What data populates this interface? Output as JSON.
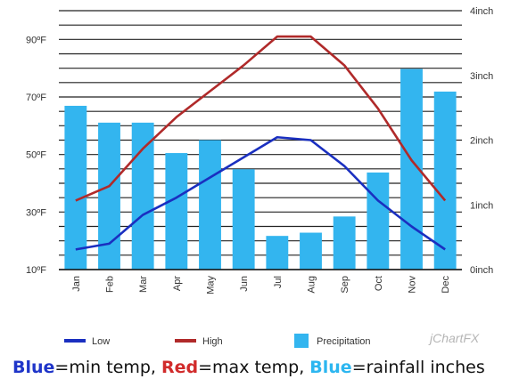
{
  "chart_data": {
    "type": "bar",
    "categories": [
      "Jan",
      "Feb",
      "Mar",
      "Apr",
      "May",
      "Jun",
      "Jul",
      "Aug",
      "Sep",
      "Oct",
      "Nov",
      "Dec"
    ],
    "series": [
      {
        "name": "Low",
        "type": "line",
        "axis": "left",
        "color": "#1a2fc0",
        "values": [
          17,
          19,
          29,
          35,
          42,
          49,
          56,
          55,
          46,
          34,
          25,
          17
        ]
      },
      {
        "name": "High",
        "type": "line",
        "axis": "left",
        "color": "#b02a2a",
        "values": [
          34,
          39,
          52,
          63,
          72,
          81,
          91,
          91,
          81,
          66,
          48,
          34
        ]
      },
      {
        "name": "Precipitation",
        "type": "bar",
        "axis": "right",
        "color": "#33b5ef",
        "values": [
          2.53,
          2.27,
          2.27,
          1.8,
          2.0,
          1.55,
          0.52,
          0.57,
          0.82,
          1.5,
          3.1,
          2.75
        ]
      }
    ],
    "left_axis": {
      "ylim": [
        10,
        100
      ],
      "ticks": [
        "10ºF",
        "30ºF",
        "50ºF",
        "70ºF",
        "90ºF"
      ]
    },
    "right_axis": {
      "ylim": [
        0,
        4
      ],
      "ticks": [
        "0inch",
        "1inch",
        "2inch",
        "3inch",
        "4inch"
      ]
    },
    "grid": true,
    "legend_position": "bottom",
    "watermark": "jChartFX"
  },
  "caption": {
    "blue_word": "Blue",
    "min_text": "=min temp, ",
    "red_word": "Red",
    "max_text": "=max temp, ",
    "cyan_word": "Blue",
    "rain_text": "=rainfall inches"
  }
}
